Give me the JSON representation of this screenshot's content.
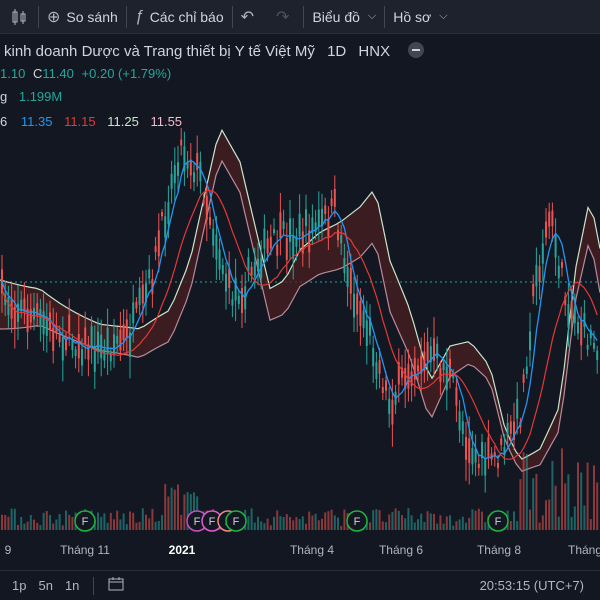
{
  "toolbar": {
    "compare_label": "So sánh",
    "indicators_label": "Các chỉ báo",
    "chart_type_label": "Biểu đồ",
    "profile_label": "Hồ sơ"
  },
  "legend": {
    "title": "kinh doanh Dược và Trang thiết bị Y tế Việt Mỹ",
    "interval": "1D",
    "exchange": "HNX",
    "ohlc_prefix": "1.10",
    "close_label": "C",
    "close_value": "11.40",
    "change": "+0.20 (+1.79%)",
    "volume_label": "g",
    "volume_value": "1.199M",
    "ind_prefix": "6",
    "ind_values": [
      "11.35",
      "11.15",
      "11.25",
      "11.55"
    ],
    "ind_colors": [
      "#2196f3",
      "#e53935",
      "#c8e6c9",
      "#f8bbd0"
    ]
  },
  "chart_data": {
    "type": "candlestick",
    "x_ticks": [
      "9",
      "Tháng 11",
      "2021",
      "Tháng 4",
      "Tháng 6",
      "Tháng 8",
      "Tháng"
    ],
    "event_markers": [
      "F",
      "F",
      "F",
      "F",
      "F",
      "F",
      "F"
    ],
    "colors": {
      "up": "#26a69a",
      "down": "#ef5350",
      "cloud_up": "#1f3b2e",
      "cloud_down": "#4a1f22"
    }
  },
  "bottombar": {
    "ranges": [
      "1p",
      "5n",
      "1n"
    ],
    "time": "20:53:15 (UTC+7)"
  }
}
